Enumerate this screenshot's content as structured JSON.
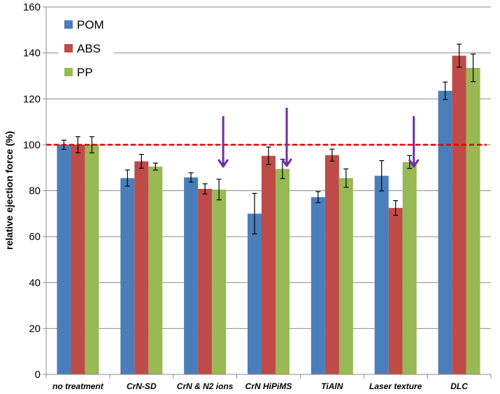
{
  "chart_data": {
    "type": "bar",
    "title": "",
    "xlabel": "",
    "ylabel": "relative ejection force (%)",
    "ylim": [
      0,
      160
    ],
    "yticks": [
      0,
      20,
      40,
      60,
      80,
      100,
      120,
      140,
      160
    ],
    "grid": true,
    "legend_position": "top-left",
    "categories": [
      "no treatment",
      "CrN-SD",
      "CrN & N2 ions",
      "CrN HiPiMS",
      "TiAlN",
      "Laser texture",
      "DLC"
    ],
    "series": [
      {
        "name": "POM",
        "color": "#4a7ebb",
        "values": [
          100,
          85.5,
          85.8,
          70,
          77.2,
          86.5,
          123.5
        ],
        "errors": [
          2,
          3.5,
          2,
          8.8,
          2.4,
          6.6,
          3.8
        ]
      },
      {
        "name": "ABS",
        "color": "#be4b48",
        "values": [
          100,
          92.8,
          80.8,
          95.2,
          95.5,
          72.5,
          138.8
        ],
        "errors": [
          3.5,
          3,
          2.2,
          3.8,
          2.6,
          3.2,
          5
        ]
      },
      {
        "name": "PP",
        "color": "#98b954",
        "values": [
          100,
          90.5,
          80.5,
          89.5,
          85.5,
          92.5,
          133.5
        ],
        "errors": [
          3.5,
          1.5,
          4.5,
          4.2,
          4,
          2.8,
          6
        ]
      }
    ],
    "reference_line": {
      "value": 100,
      "color": "#e00000",
      "style": "dashed"
    },
    "arrows": {
      "color": "#7030a0",
      "categories": [
        "CrN & N2 ions",
        "CrN HiPiMS",
        "Laser texture"
      ]
    }
  }
}
